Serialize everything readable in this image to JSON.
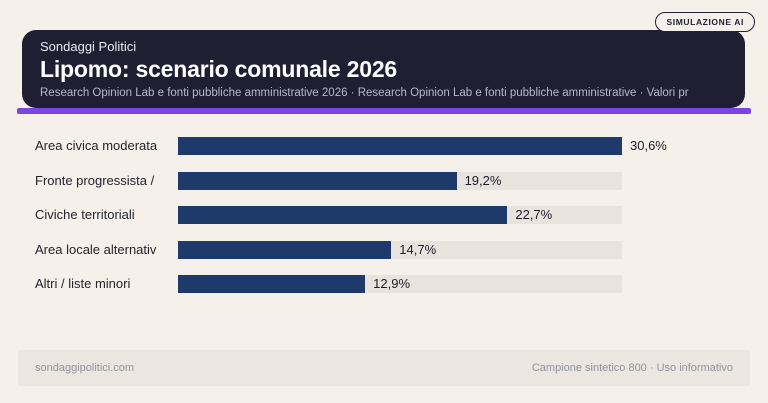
{
  "badge": {
    "label": "SIMULAZIONE AI"
  },
  "header": {
    "kicker": "Sondaggi Politici",
    "title": "Lipomo: scenario comunale 2026",
    "subtitle": "Research Opinion Lab e fonti pubbliche amministrative 2026 · Research Opinion Lab e fonti pubbliche amministrative · Valori pr"
  },
  "chart_data": {
    "type": "bar",
    "orientation": "horizontal",
    "title": "Lipomo: scenario comunale 2026",
    "categories": [
      "Area civica moderata",
      "Fronte progressista /",
      "Civiche territoriali",
      "Area locale alternativ",
      "Altri / liste minori"
    ],
    "values": [
      30.6,
      19.2,
      22.7,
      14.7,
      12.9
    ],
    "value_labels": [
      "30,6%",
      "19,2%",
      "22,7%",
      "14,7%",
      "12,9%"
    ],
    "max_value": 30.6,
    "unit": "%",
    "xlabel": "",
    "ylabel": "",
    "grid": false,
    "legend": false,
    "bar_color": "#1e3a6b",
    "track_color": "#e8e4dd"
  },
  "footer": {
    "left": "sondaggipolitici.com",
    "right": "Campione sintetico 800 · Uso informativo"
  },
  "colors": {
    "page_bg": "#f5f1ea",
    "header_bg": "#201e33",
    "accent_purple": "#7c45e0",
    "bar_navy": "#1e3a6b",
    "bar_track": "#e8e4dd",
    "footer_bg": "#ebe7e0"
  }
}
